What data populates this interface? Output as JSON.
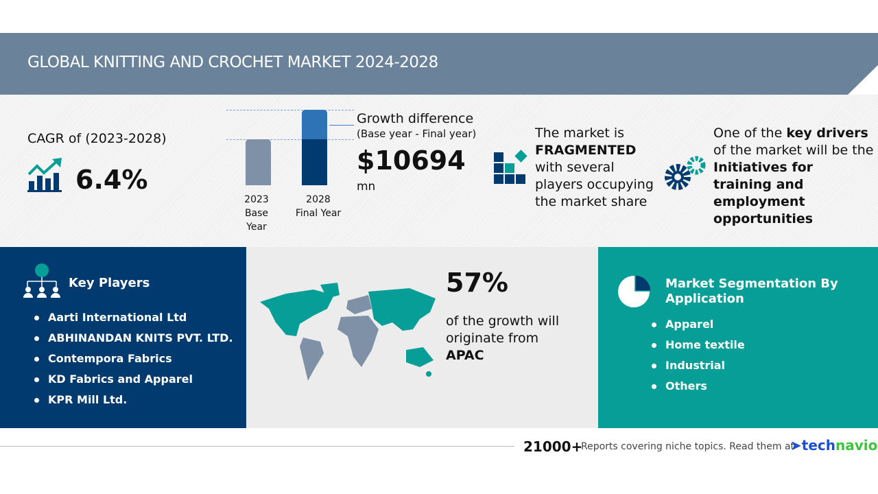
{
  "header": {
    "title": "GLOBAL KNITTING AND CROCHET MARKET 2024-2028"
  },
  "cagr": {
    "label": "CAGR of (2023-2028)",
    "value": "6.4%",
    "icon": "growth-chart-icon"
  },
  "growth": {
    "bars": [
      {
        "year": "2023",
        "label": "Base Year"
      },
      {
        "year": "2028",
        "label": "Final Year"
      }
    ],
    "title": "Growth difference",
    "subtitle": "(Base year - Final year)",
    "value": "$10694",
    "unit": "mn"
  },
  "market": {
    "line1": "The market is",
    "emph": "FRAGMENTED",
    "line3": "with several",
    "line4": "players occupying",
    "line5": "the market share"
  },
  "drivers": {
    "pre": "One of the ",
    "key": "key drivers",
    "line2": "of the market will be the",
    "d1": "Initiatives for",
    "d2": "training and",
    "d3": "employment",
    "d4": "opportunities"
  },
  "key_players": {
    "title": "Key Players",
    "items": [
      "Aarti International Ltd",
      "ABHINANDAN KNITS PVT. LTD.",
      "Contempora Fabrics",
      "KD Fabrics and Apparel",
      "KPR Mill Ltd."
    ]
  },
  "region": {
    "pct": "57%",
    "line1": "of the growth will",
    "line2": "originate from",
    "region": "APAC"
  },
  "segmentation": {
    "title1": "Market Segmentation By",
    "title2": "Application",
    "items": [
      "Apparel",
      "Home textile",
      "Industrial",
      "Others"
    ]
  },
  "footer": {
    "count": "21000+",
    "text": "Reports covering niche topics. Read them at",
    "brand1": "tech",
    "brand2": "navio"
  },
  "colors": {
    "header": "#6b829b",
    "navy": "#003a6e",
    "teal": "#079e97"
  }
}
